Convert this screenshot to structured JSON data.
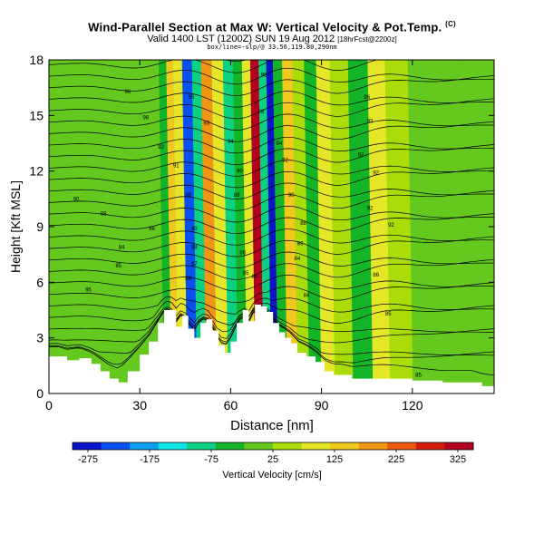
{
  "header": {
    "title": "Wind-Parallel Section at Max W: Vertical Velocity & Pot.Temp.",
    "copyright": "(C)",
    "valid": "Valid 1400 LST (1200Z) SUN 19 Aug 2012",
    "run": "[18hrFcst@2200z]",
    "sub": "box/line=-slp/@ 33.56,119.80,290nm"
  },
  "colors": {
    "background": "#ffffff",
    "terrain_fill": "#ffffff",
    "contour": "#000000",
    "colorbar_stops": [
      "#0a14c8",
      "#0a50f0",
      "#0aa0f0",
      "#10e6e6",
      "#0ad282",
      "#14b428",
      "#64c81e",
      "#aadc0a",
      "#e6e628",
      "#f0c81e",
      "#f09614",
      "#eb5a0a",
      "#d21e0a",
      "#b4001e"
    ]
  },
  "chart_data": {
    "type": "heatmap",
    "xlabel": "Distance [nm]",
    "ylabel": "Height [Kft MSL]",
    "xlim": [
      0,
      147
    ],
    "ylim": [
      0,
      18
    ],
    "xticks": [
      0,
      30,
      60,
      90,
      120
    ],
    "yticks": [
      0,
      3,
      6,
      9,
      12,
      15,
      18
    ],
    "colorbar": {
      "label": "Vertical Velocity [cm/s]",
      "ticks": [
        -275,
        -175,
        -75,
        25,
        125,
        225,
        325
      ],
      "range": [
        -300,
        350
      ]
    },
    "field": "vertical velocity (filled) with potential temperature contours",
    "vertical_velocity_bands": [
      {
        "x": 39.5,
        "w": -40
      },
      {
        "x": 41.5,
        "w": 130
      },
      {
        "x": 44,
        "w": 90
      },
      {
        "x": 47.5,
        "w": -230
      },
      {
        "x": 50.5,
        "w": -90
      },
      {
        "x": 53.5,
        "w": 175
      },
      {
        "x": 57.5,
        "w": 90
      },
      {
        "x": 61,
        "w": -110
      },
      {
        "x": 64,
        "w": -45
      },
      {
        "x": 67,
        "w": 90
      },
      {
        "x": 69.5,
        "w": 330
      },
      {
        "x": 72.5,
        "w": -90
      },
      {
        "x": 74.5,
        "w": -270
      },
      {
        "x": 77,
        "w": -50
      },
      {
        "x": 80.5,
        "w": 150
      },
      {
        "x": 84,
        "w": 70
      },
      {
        "x": 88,
        "w": -40
      },
      {
        "x": 92,
        "w": 90
      },
      {
        "x": 97,
        "w": 45
      },
      {
        "x": 104,
        "w": -40
      },
      {
        "x": 110,
        "w": 90
      },
      {
        "x": 115.5,
        "w": 60
      },
      {
        "x": 125,
        "w": -20
      }
    ],
    "terrain_height_kft": [
      {
        "x": 0,
        "h": 2.0
      },
      {
        "x": 3,
        "h": 2.0
      },
      {
        "x": 6,
        "h": 1.8
      },
      {
        "x": 10,
        "h": 1.9
      },
      {
        "x": 14,
        "h": 1.6
      },
      {
        "x": 17,
        "h": 1.2
      },
      {
        "x": 20,
        "h": 0.8
      },
      {
        "x": 23,
        "h": 0.6
      },
      {
        "x": 26,
        "h": 1.2
      },
      {
        "x": 30,
        "h": 2.1
      },
      {
        "x": 33,
        "h": 2.8
      },
      {
        "x": 36,
        "h": 3.8
      },
      {
        "x": 38,
        "h": 4.5
      },
      {
        "x": 40,
        "h": 4.5
      },
      {
        "x": 42,
        "h": 3.6
      },
      {
        "x": 44,
        "h": 4.2
      },
      {
        "x": 46,
        "h": 3.5
      },
      {
        "x": 48,
        "h": 3.0
      },
      {
        "x": 50,
        "h": 3.8
      },
      {
        "x": 52,
        "h": 4.0
      },
      {
        "x": 54,
        "h": 3.4
      },
      {
        "x": 56,
        "h": 2.6
      },
      {
        "x": 58,
        "h": 2.2
      },
      {
        "x": 60,
        "h": 2.8
      },
      {
        "x": 62,
        "h": 3.8
      },
      {
        "x": 64,
        "h": 4.5
      },
      {
        "x": 66,
        "h": 3.9
      },
      {
        "x": 68,
        "h": 4.8
      },
      {
        "x": 70,
        "h": 4.7
      },
      {
        "x": 72,
        "h": 4.4
      },
      {
        "x": 74,
        "h": 3.8
      },
      {
        "x": 76,
        "h": 3.3
      },
      {
        "x": 78,
        "h": 3.0
      },
      {
        "x": 80,
        "h": 2.7
      },
      {
        "x": 82,
        "h": 2.2
      },
      {
        "x": 85,
        "h": 2.0
      },
      {
        "x": 88,
        "h": 1.7
      },
      {
        "x": 91,
        "h": 1.2
      },
      {
        "x": 94,
        "h": 1.0
      },
      {
        "x": 97,
        "h": 1.0
      },
      {
        "x": 100,
        "h": 0.8
      },
      {
        "x": 105,
        "h": 0.8
      },
      {
        "x": 110,
        "h": 0.8
      },
      {
        "x": 120,
        "h": 0.7
      },
      {
        "x": 130,
        "h": 0.6
      },
      {
        "x": 140,
        "h": 0.6
      },
      {
        "x": 143,
        "h": 0.4
      },
      {
        "x": 147,
        "h": 0.3
      }
    ],
    "contour_labels": [
      {
        "x": 26,
        "y": 16.3,
        "text": "96"
      },
      {
        "x": 32,
        "y": 14.9,
        "text": "98"
      },
      {
        "x": 37,
        "y": 13.3,
        "text": "92"
      },
      {
        "x": 9,
        "y": 10.5,
        "text": "90"
      },
      {
        "x": 18,
        "y": 9.7,
        "text": "88"
      },
      {
        "x": 34,
        "y": 8.9,
        "text": "86"
      },
      {
        "x": 24,
        "y": 7.9,
        "text": "84"
      },
      {
        "x": 23,
        "y": 6.9,
        "text": "85"
      },
      {
        "x": 13,
        "y": 5.6,
        "text": "95"
      },
      {
        "x": 47,
        "y": 16.0,
        "text": "95"
      },
      {
        "x": 52,
        "y": 14.6,
        "text": "93"
      },
      {
        "x": 42,
        "y": 12.3,
        "text": "91"
      },
      {
        "x": 46,
        "y": 10.7,
        "text": "90"
      },
      {
        "x": 48,
        "y": 8.9,
        "text": "90"
      },
      {
        "x": 48,
        "y": 7.9,
        "text": "88"
      },
      {
        "x": 48,
        "y": 7.0,
        "text": "87"
      },
      {
        "x": 46,
        "y": 6.2,
        "text": "86"
      },
      {
        "x": 60,
        "y": 13.6,
        "text": "94"
      },
      {
        "x": 63,
        "y": 12.0,
        "text": "90"
      },
      {
        "x": 62,
        "y": 10.7,
        "text": "88"
      },
      {
        "x": 64,
        "y": 7.6,
        "text": "86"
      },
      {
        "x": 65,
        "y": 6.5,
        "text": "85"
      },
      {
        "x": 71,
        "y": 17.2,
        "text": "98"
      },
      {
        "x": 70,
        "y": 15.2,
        "text": "96"
      },
      {
        "x": 68,
        "y": 6.3,
        "text": "84"
      },
      {
        "x": 76,
        "y": 13.5,
        "text": "94"
      },
      {
        "x": 78,
        "y": 12.6,
        "text": "92"
      },
      {
        "x": 80,
        "y": 10.7,
        "text": "90"
      },
      {
        "x": 84,
        "y": 9.2,
        "text": "88"
      },
      {
        "x": 83,
        "y": 8.1,
        "text": "86"
      },
      {
        "x": 82,
        "y": 7.3,
        "text": "84"
      },
      {
        "x": 85,
        "y": 5.3,
        "text": "84"
      },
      {
        "x": 105,
        "y": 16.0,
        "text": "96"
      },
      {
        "x": 106,
        "y": 14.7,
        "text": "93"
      },
      {
        "x": 103,
        "y": 12.9,
        "text": "92"
      },
      {
        "x": 108,
        "y": 11.9,
        "text": "92"
      },
      {
        "x": 106,
        "y": 10.0,
        "text": "92"
      },
      {
        "x": 113,
        "y": 9.1,
        "text": "92"
      },
      {
        "x": 108,
        "y": 6.4,
        "text": "86"
      },
      {
        "x": 112,
        "y": 4.3,
        "text": "85"
      },
      {
        "x": 122,
        "y": 1.0,
        "text": "85"
      }
    ]
  }
}
